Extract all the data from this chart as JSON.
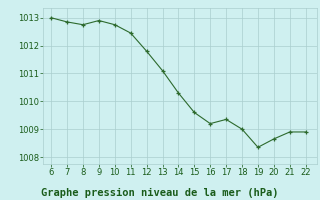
{
  "x": [
    6,
    7,
    8,
    9,
    10,
    11,
    12,
    13,
    14,
    15,
    16,
    17,
    18,
    19,
    20,
    21,
    22
  ],
  "y": [
    1013.0,
    1012.85,
    1012.75,
    1012.9,
    1012.75,
    1012.45,
    1011.8,
    1011.1,
    1010.3,
    1009.6,
    1009.2,
    1009.35,
    1009.0,
    1008.35,
    1008.65,
    1008.9,
    1008.9
  ],
  "line_color": "#2d6a2d",
  "marker_color": "#2d6a2d",
  "bg_color": "#cff0f0",
  "grid_color": "#aacece",
  "xlabel": "Graphe pression niveau de la mer (hPa)",
  "xlabel_fontsize": 7.5,
  "xlabel_color": "#1a5c1a",
  "yticks": [
    1008,
    1009,
    1010,
    1011,
    1012,
    1013
  ],
  "xticks": [
    6,
    7,
    8,
    9,
    10,
    11,
    12,
    13,
    14,
    15,
    16,
    17,
    18,
    19,
    20,
    21,
    22
  ],
  "ylim": [
    1007.75,
    1013.35
  ],
  "xlim": [
    5.5,
    22.7
  ],
  "tick_fontsize": 6,
  "tick_color": "#1a5c1a"
}
